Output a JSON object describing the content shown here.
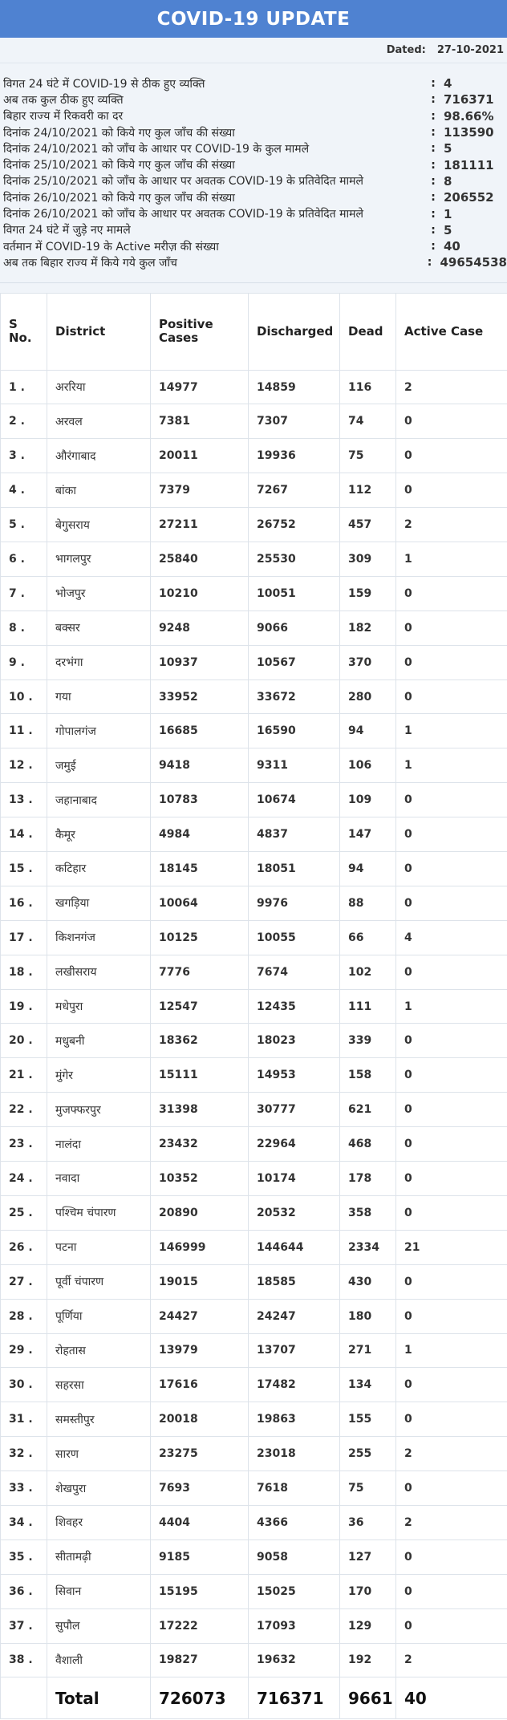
{
  "header": {
    "title": "COVID-19 UPDATE"
  },
  "dated": {
    "label": "Dated:",
    "value": "27-10-2021"
  },
  "stats": [
    {
      "label": "विगत 24 घंटे में COVID-19 से ठीक हुए व्यक्ति",
      "value": "4"
    },
    {
      "label": "अब तक कुल ठीक हुए व्यक्ति",
      "value": "716371"
    },
    {
      "label": "बिहार राज्य में रिकवरी का दर",
      "value": "98.66%"
    },
    {
      "label": "दिनांक 24/10/2021 को किये गए कुल जाँच की संख्या",
      "value": "113590"
    },
    {
      "label": "दिनांक 24/10/2021 को जाँच के आधार पर COVID-19 के कुल मामले",
      "value": "5"
    },
    {
      "label": "दिनांक 25/10/2021 को किये गए कुल जाँच की संख्या",
      "value": "181111"
    },
    {
      "label": "दिनांक 25/10/2021 को जाँच के आधार पर अवतक COVID-19 के प्रतिवेदित मामले",
      "value": "8"
    },
    {
      "label": "दिनांक 26/10/2021 को किये गए कुल जाँच की संख्या",
      "value": "206552"
    },
    {
      "label": "दिनांक 26/10/2021 को जाँच के आधार पर अवतक COVID-19 के प्रतिवेदित मामले",
      "value": "1"
    },
    {
      "label": "विगत 24 घंटे में जुड़े नए मामले",
      "value": "5"
    },
    {
      "label": "वर्तमान में COVID-19 के Active मरीज़ की संख्या",
      "value": "40"
    },
    {
      "label": "अब तक बिहार राज्य में किये गये कुल जाँच",
      "value": "49654538"
    }
  ],
  "table": {
    "headers": [
      "S No.",
      "District",
      "Positive Cases",
      "Discharged",
      "Dead",
      "Active Case"
    ],
    "rows": [
      [
        "1 .",
        "अररिया",
        "14977",
        "14859",
        "116",
        "2"
      ],
      [
        "2 .",
        "अरवल",
        "7381",
        "7307",
        "74",
        "0"
      ],
      [
        "3 .",
        "औरंगाबाद",
        "20011",
        "19936",
        "75",
        "0"
      ],
      [
        "4 .",
        "बांका",
        "7379",
        "7267",
        "112",
        "0"
      ],
      [
        "5 .",
        "बेगुसराय",
        "27211",
        "26752",
        "457",
        "2"
      ],
      [
        "6 .",
        "भागलपुर",
        "25840",
        "25530",
        "309",
        "1"
      ],
      [
        "7 .",
        "भोजपुर",
        "10210",
        "10051",
        "159",
        "0"
      ],
      [
        "8 .",
        "बक्सर",
        "9248",
        "9066",
        "182",
        "0"
      ],
      [
        "9 .",
        "दरभंगा",
        "10937",
        "10567",
        "370",
        "0"
      ],
      [
        "10 .",
        "गया",
        "33952",
        "33672",
        "280",
        "0"
      ],
      [
        "11 .",
        "गोपालगंज",
        "16685",
        "16590",
        "94",
        "1"
      ],
      [
        "12 .",
        "जमुई",
        "9418",
        "9311",
        "106",
        "1"
      ],
      [
        "13 .",
        "जहानाबाद",
        "10783",
        "10674",
        "109",
        "0"
      ],
      [
        "14 .",
        "कैमूर",
        "4984",
        "4837",
        "147",
        "0"
      ],
      [
        "15 .",
        "कटिहार",
        "18145",
        "18051",
        "94",
        "0"
      ],
      [
        "16 .",
        "खगड़िया",
        "10064",
        "9976",
        "88",
        "0"
      ],
      [
        "17 .",
        "किशनगंज",
        "10125",
        "10055",
        "66",
        "4"
      ],
      [
        "18 .",
        "लखीसराय",
        "7776",
        "7674",
        "102",
        "0"
      ],
      [
        "19 .",
        "मधेपुरा",
        "12547",
        "12435",
        "111",
        "1"
      ],
      [
        "20 .",
        "मधुबनी",
        "18362",
        "18023",
        "339",
        "0"
      ],
      [
        "21 .",
        "मुंगेर",
        "15111",
        "14953",
        "158",
        "0"
      ],
      [
        "22 .",
        "मुजफ्फरपुर",
        "31398",
        "30777",
        "621",
        "0"
      ],
      [
        "23 .",
        "नालंदा",
        "23432",
        "22964",
        "468",
        "0"
      ],
      [
        "24 .",
        "नवादा",
        "10352",
        "10174",
        "178",
        "0"
      ],
      [
        "25 .",
        "पश्चिम चंपारण",
        "20890",
        "20532",
        "358",
        "0"
      ],
      [
        "26 .",
        "पटना",
        "146999",
        "144644",
        "2334",
        "21"
      ],
      [
        "27 .",
        "पूर्वी चंपारण",
        "19015",
        "18585",
        "430",
        "0"
      ],
      [
        "28 .",
        "पूर्णिया",
        "24427",
        "24247",
        "180",
        "0"
      ],
      [
        "29 .",
        "रोहतास",
        "13979",
        "13707",
        "271",
        "1"
      ],
      [
        "30 .",
        "सहरसा",
        "17616",
        "17482",
        "134",
        "0"
      ],
      [
        "31 .",
        "समस्तीपुर",
        "20018",
        "19863",
        "155",
        "0"
      ],
      [
        "32 .",
        "सारण",
        "23275",
        "23018",
        "255",
        "2"
      ],
      [
        "33 .",
        "शेखपुरा",
        "7693",
        "7618",
        "75",
        "0"
      ],
      [
        "34 .",
        "शिवहर",
        "4404",
        "4366",
        "36",
        "2"
      ],
      [
        "35 .",
        "सीतामढ़ी",
        "9185",
        "9058",
        "127",
        "0"
      ],
      [
        "36 .",
        "सिवान",
        "15195",
        "15025",
        "170",
        "0"
      ],
      [
        "37 .",
        "सुपौल",
        "17222",
        "17093",
        "129",
        "0"
      ],
      [
        "38 .",
        "वैशाली",
        "19827",
        "19632",
        "192",
        "2"
      ]
    ],
    "total": [
      "",
      "Total",
      "726073",
      "716371",
      "9661",
      "40"
    ]
  }
}
